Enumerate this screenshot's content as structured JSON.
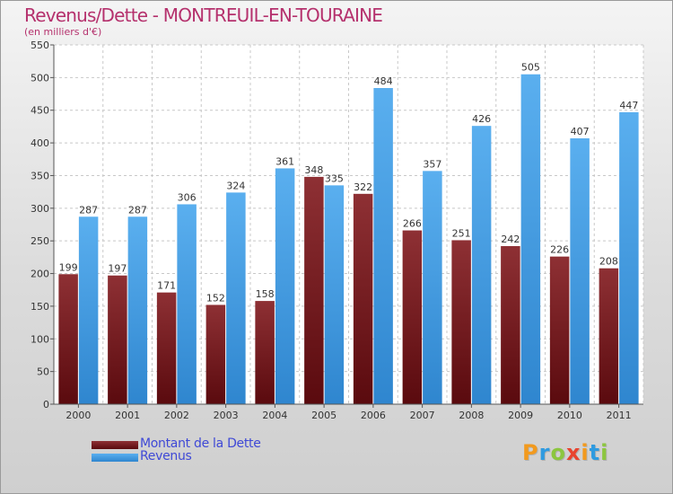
{
  "title": "Revenus/Dette - MONTREUIL-EN-TOURAINE",
  "subtitle": "(en milliers d'€)",
  "logo": [
    "P",
    "r",
    "o",
    "x",
    "i",
    "t",
    "i"
  ],
  "logo_colors": [
    "#f29a1e",
    "#2f9be0",
    "#8cc63f",
    "#e8442f",
    "#f29a1e",
    "#2f9be0",
    "#8cc63f"
  ],
  "chart_data": {
    "type": "bar",
    "categories": [
      "2000",
      "2001",
      "2002",
      "2003",
      "2004",
      "2005",
      "2006",
      "2007",
      "2008",
      "2009",
      "2010",
      "2011"
    ],
    "series": [
      {
        "name": "Montant de la Dette",
        "values": [
          199,
          197,
          171,
          152,
          158,
          348,
          322,
          266,
          251,
          242,
          226,
          208
        ],
        "color": "#7a1f23"
      },
      {
        "name": "Revenus",
        "values": [
          287,
          287,
          306,
          324,
          361,
          335,
          484,
          357,
          426,
          505,
          407,
          447
        ],
        "color": "#4aa3e6"
      }
    ],
    "ylim": [
      0,
      550
    ],
    "yticks": [
      "0",
      "50",
      "100",
      "150",
      "200",
      "250",
      "300",
      "350",
      "400",
      "450",
      "500",
      "550"
    ],
    "grid": true,
    "legend_position": "bottom-left"
  }
}
